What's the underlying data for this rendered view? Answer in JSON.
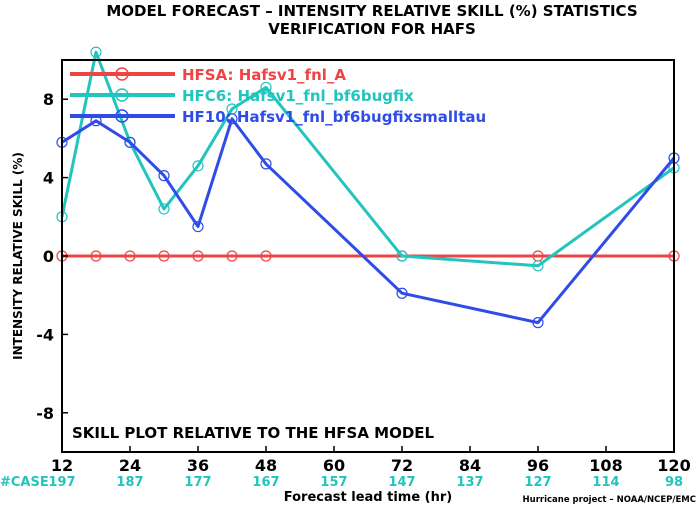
{
  "chart_data": {
    "type": "line",
    "title_lines": [
      "MODEL FORECAST – INTENSITY RELATIVE SKILL (%) STATISTICS",
      "VERIFICATION FOR HAFS"
    ],
    "xlabel": "Forecast lead time (hr)",
    "ylabel": "INTENSITY RELATIVE SKILL (%)",
    "xlim": [
      12,
      120
    ],
    "ylim": [
      -10,
      10
    ],
    "x_ticks": [
      12,
      24,
      36,
      48,
      60,
      72,
      84,
      96,
      108,
      120
    ],
    "y_ticks": [
      -8,
      -4,
      0,
      4,
      8
    ],
    "annotation": "SKILL PLOT RELATIVE TO THE HFSA MODEL",
    "case_label": "#CASE",
    "cases": [
      197,
      187,
      177,
      167,
      157,
      147,
      137,
      127,
      114,
      98
    ],
    "credit": "Hurricane project – NOAA/NCEP/EMC",
    "legend_position": "top-left",
    "series": [
      {
        "name": "HFSA: Hafsv1_fnl_A",
        "color": "#ef4444",
        "x": [
          12,
          18,
          24,
          30,
          36,
          42,
          48,
          72,
          96,
          120
        ],
        "y": [
          0,
          0,
          0,
          0,
          0,
          0,
          0,
          0,
          0,
          0
        ]
      },
      {
        "name": "HFC6: Hafsv1_fnl_bf6bugfix",
        "color": "#22c4be",
        "x": [
          12,
          18,
          24,
          30,
          36,
          42,
          48,
          72,
          96,
          120
        ],
        "y": [
          2.0,
          10.4,
          5.8,
          2.4,
          4.6,
          7.5,
          8.6,
          0.0,
          -0.5,
          4.5
        ]
      },
      {
        "name": "HF10: Hafsv1_fnl_bf6bugfixsmalltau",
        "color": "#2f4ce8",
        "x": [
          12,
          18,
          24,
          30,
          36,
          42,
          48,
          72,
          96,
          120
        ],
        "y": [
          5.8,
          6.9,
          5.8,
          4.1,
          1.5,
          7.0,
          4.7,
          -1.9,
          -3.4,
          5.0
        ]
      }
    ]
  }
}
